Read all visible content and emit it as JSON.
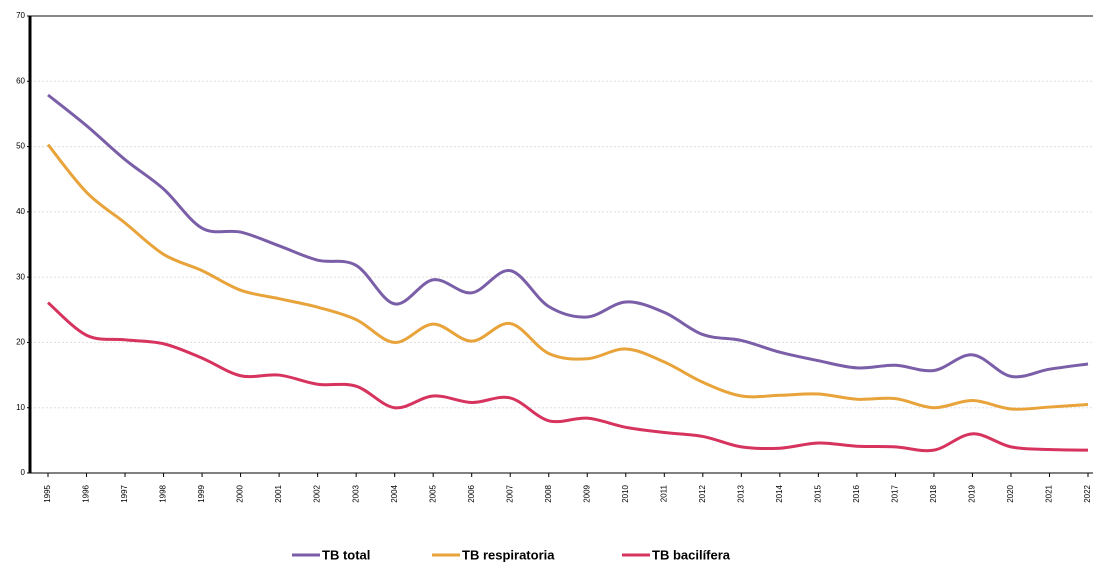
{
  "chart_data": {
    "type": "line",
    "categories": [
      "1995",
      "1996",
      "1997",
      "1998",
      "1999",
      "2000",
      "2001",
      "2002",
      "2003",
      "2004",
      "2005",
      "2006",
      "2007",
      "2008",
      "2009",
      "2010",
      "2011",
      "2012",
      "2013",
      "2014",
      "2015",
      "2016",
      "2017",
      "2018",
      "2019",
      "2020",
      "2021",
      "2022"
    ],
    "series": [
      {
        "name": "TB total",
        "color": "#7a5ea8",
        "values": [
          57.9,
          53.2,
          48,
          43.5,
          37.5,
          36.9,
          34.8,
          32.6,
          31.8,
          25.9,
          29.6,
          27.6,
          31.0,
          25.5,
          23.9,
          26.2,
          24.6,
          21.2,
          20.3,
          18.5,
          17.2,
          16.1,
          16.5,
          15.7,
          18.1,
          14.8,
          15.9,
          16.7
        ]
      },
      {
        "name": "TB respiratoria",
        "color": "#e8a33a",
        "values": [
          50.3,
          43.0,
          38.3,
          33.5,
          31.0,
          28.0,
          26.7,
          25.4,
          23.5,
          20.0,
          22.8,
          20.2,
          22.9,
          18.3,
          17.5,
          19.0,
          17.0,
          13.9,
          11.8,
          11.9,
          12.1,
          11.3,
          11.4,
          10.0,
          11.1,
          9.8,
          10.1,
          10.5
        ]
      },
      {
        "name": "TB bacilífera",
        "color": "#d6335e",
        "values": [
          26.1,
          21.1,
          20.4,
          19.8,
          17.6,
          14.9,
          15.0,
          13.6,
          13.3,
          10.0,
          11.8,
          10.8,
          11.5,
          8.0,
          8.4,
          7.0,
          6.2,
          5.6,
          4.0,
          3.8,
          4.6,
          4.1,
          4.0,
          3.5,
          6.0,
          4.0,
          3.6,
          3.5
        ]
      }
    ],
    "ylim": [
      0,
      70
    ],
    "yticks": [
      0,
      10,
      20,
      30,
      40,
      50,
      60,
      70
    ],
    "grid": true
  }
}
